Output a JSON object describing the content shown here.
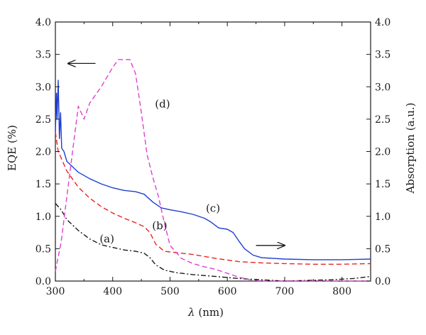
{
  "chart_data": {
    "type": "line",
    "xlabel_symbol": "λ",
    "xlabel_unit": "(nm)",
    "ylabel_left": "EQE (%)",
    "ylabel_right": "Absorption (a.u.)",
    "xlim": [
      300,
      850
    ],
    "ylim_left": [
      0,
      4
    ],
    "ylim_right": [
      0,
      4
    ],
    "x_ticks": [
      "300",
      "400",
      "500",
      "600",
      "700",
      "800"
    ],
    "x_tick_values": [
      300,
      400,
      500,
      600,
      700,
      800
    ],
    "y_ticks_left": [
      "0.0",
      "0.5",
      "1.0",
      "1.5",
      "2.0",
      "2.5",
      "3.0",
      "3.5",
      "4.0"
    ],
    "y_ticks_right": [
      "0.0",
      "0.5",
      "1.0",
      "1.5",
      "2.0",
      "2.5",
      "3.0",
      "3.5",
      "4.0"
    ],
    "y_tick_values": [
      0,
      0.5,
      1,
      1.5,
      2,
      2.5,
      3,
      3.5,
      4
    ],
    "grid": false,
    "colors": {
      "axis": "#1a1a1a",
      "a": "#1a1a1a",
      "b": "#e8251f",
      "c": "#1f3fd1",
      "d": "#e040d0"
    },
    "series": [
      {
        "name": "(a)",
        "axis": "right",
        "style": "dashdot",
        "x": [
          300,
          310,
          320,
          340,
          360,
          380,
          400,
          420,
          440,
          455,
          465,
          475,
          490,
          510,
          540,
          580,
          620,
          660,
          700,
          740,
          780,
          820,
          850
        ],
        "y": [
          1.2,
          1.1,
          0.95,
          0.78,
          0.65,
          0.56,
          0.52,
          0.48,
          0.46,
          0.43,
          0.36,
          0.25,
          0.17,
          0.13,
          0.1,
          0.07,
          0.04,
          0.02,
          0.0,
          0.01,
          0.02,
          0.04,
          0.07
        ]
      },
      {
        "name": "(b)",
        "axis": "right",
        "style": "dashed",
        "x": [
          300,
          305,
          310,
          320,
          340,
          360,
          380,
          400,
          420,
          440,
          455,
          465,
          475,
          490,
          510,
          540,
          580,
          620,
          660,
          700,
          750,
          800,
          850
        ],
        "y": [
          2.3,
          2.0,
          1.9,
          1.7,
          1.45,
          1.28,
          1.15,
          1.05,
          0.97,
          0.9,
          0.84,
          0.75,
          0.57,
          0.46,
          0.44,
          0.41,
          0.35,
          0.3,
          0.28,
          0.27,
          0.26,
          0.26,
          0.27
        ]
      },
      {
        "name": "(c)",
        "axis": "right",
        "style": "solid",
        "x": [
          300,
          302,
          303,
          305,
          307,
          309,
          311,
          315,
          320,
          340,
          360,
          380,
          400,
          420,
          440,
          455,
          470,
          485,
          500,
          520,
          540,
          560,
          570,
          585,
          600,
          610,
          620,
          630,
          645,
          660,
          700,
          750,
          800,
          850
        ],
        "y": [
          2.3,
          2.9,
          2.5,
          3.1,
          2.2,
          2.6,
          2.05,
          2.0,
          1.85,
          1.68,
          1.58,
          1.5,
          1.44,
          1.4,
          1.38,
          1.34,
          1.22,
          1.13,
          1.1,
          1.07,
          1.03,
          0.97,
          0.92,
          0.82,
          0.8,
          0.75,
          0.62,
          0.5,
          0.4,
          0.36,
          0.34,
          0.33,
          0.33,
          0.34
        ]
      },
      {
        "name": "(d)",
        "axis": "left",
        "style": "dashed",
        "x": [
          300,
          310,
          320,
          330,
          340,
          350,
          360,
          380,
          400,
          410,
          420,
          430,
          440,
          450,
          460,
          470,
          480,
          490,
          500,
          520,
          540,
          560,
          580,
          600,
          620,
          640,
          660,
          700,
          750,
          800,
          850
        ],
        "y": [
          0.15,
          0.6,
          1.3,
          2.0,
          2.7,
          2.5,
          2.75,
          3.0,
          3.3,
          3.42,
          3.42,
          3.42,
          3.2,
          2.6,
          1.95,
          1.6,
          1.3,
          0.9,
          0.55,
          0.35,
          0.27,
          0.22,
          0.18,
          0.12,
          0.06,
          0.02,
          0.0,
          0.0,
          0.0,
          0.0,
          0.0
        ]
      }
    ],
    "annotations": [
      {
        "text": "(a)",
        "x": 390,
        "y": 0.6
      },
      {
        "text": "(b)",
        "x": 482,
        "y": 0.8
      },
      {
        "text": "(c)",
        "x": 575,
        "y": 1.07
      },
      {
        "text": "(d)",
        "x": 487,
        "y": 2.68
      }
    ],
    "arrows": [
      {
        "direction": "left",
        "x1": 370,
        "x2": 322,
        "y": 3.36
      },
      {
        "direction": "right",
        "x1": 650,
        "x2": 700,
        "y": 0.55
      }
    ]
  }
}
